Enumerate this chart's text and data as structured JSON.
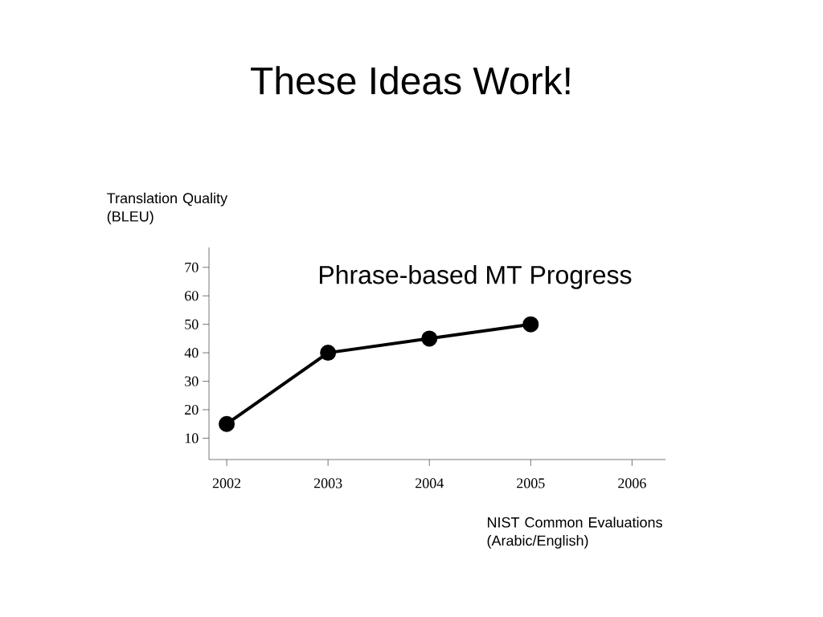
{
  "chart_data": {
    "type": "line",
    "title": "These Ideas Work!",
    "subtitle": "Phrase-based MT Progress",
    "xlabel": "NIST Common Evaluations (Arabic/English)",
    "ylabel": "Translation Quality (BLEU)",
    "categories": [
      "2002",
      "2003",
      "2004",
      "2005",
      "2006"
    ],
    "values": [
      15,
      40,
      45,
      50,
      null
    ],
    "color": "#000000",
    "marker": "circle",
    "line_style": "solid",
    "ylim": [
      2.5,
      77
    ],
    "yticks": [
      10,
      20,
      30,
      40,
      50,
      60,
      70
    ],
    "grid": false
  }
}
